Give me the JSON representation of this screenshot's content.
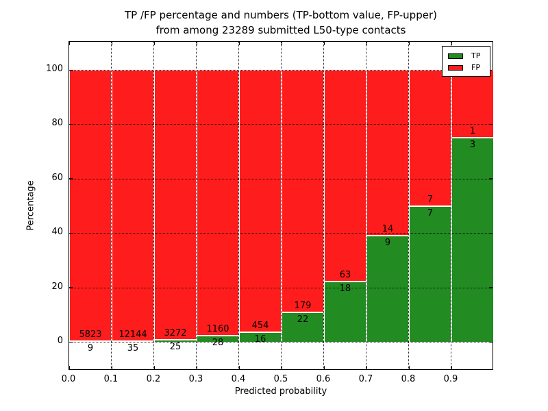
{
  "figure": {
    "title_line1": "TP /FP percentage and numbers (TP-bottom value, FP-upper)",
    "title_line2": "from among 23289 submitted L50-type contacts"
  },
  "chart_data": {
    "type": "bar",
    "stacked": true,
    "normalized_to_percent": true,
    "title": "TP /FP percentage and numbers (TP-bottom value, FP-upper) from among 23289 submitted L50-type contacts",
    "xlabel": "Predicted probability",
    "ylabel": "Percentage",
    "total_submitted": 23289,
    "bin_width": 0.1,
    "categories": [
      "0.0-0.1",
      "0.1-0.2",
      "0.2-0.3",
      "0.3-0.4",
      "0.4-0.5",
      "0.5-0.6",
      "0.6-0.7",
      "0.7-0.8",
      "0.8-0.9",
      "0.9-1.0"
    ],
    "x_tick_labels": [
      "0.0",
      "0.1",
      "0.2",
      "0.3",
      "0.4",
      "0.5",
      "0.6",
      "0.7",
      "0.8",
      "0.9"
    ],
    "y_ticks": [
      0,
      20,
      40,
      60,
      80,
      100
    ],
    "xlim": [
      0.0,
      1.0
    ],
    "ylim": [
      -10.6,
      110.3
    ],
    "grid": {
      "horizontal": true,
      "vertical": true,
      "style": "dotted",
      "color": "#000000"
    },
    "series": [
      {
        "name": "TP",
        "color": "#228B22",
        "values": [
          9,
          35,
          25,
          28,
          16,
          22,
          18,
          9,
          7,
          3
        ]
      },
      {
        "name": "FP",
        "color": "#FF1C1C",
        "values": [
          5823,
          12144,
          3272,
          1160,
          454,
          179,
          63,
          14,
          7,
          1
        ]
      }
    ],
    "tp_percent_by_bin": [
      0.15,
      0.29,
      0.76,
      2.36,
      3.4,
      10.95,
      22.22,
      39.13,
      50.0,
      75.0
    ],
    "legend": {
      "position": "upper right",
      "entries": [
        {
          "label": "TP",
          "color": "#228B22"
        },
        {
          "label": "FP",
          "color": "#FF1C1C"
        }
      ]
    }
  }
}
